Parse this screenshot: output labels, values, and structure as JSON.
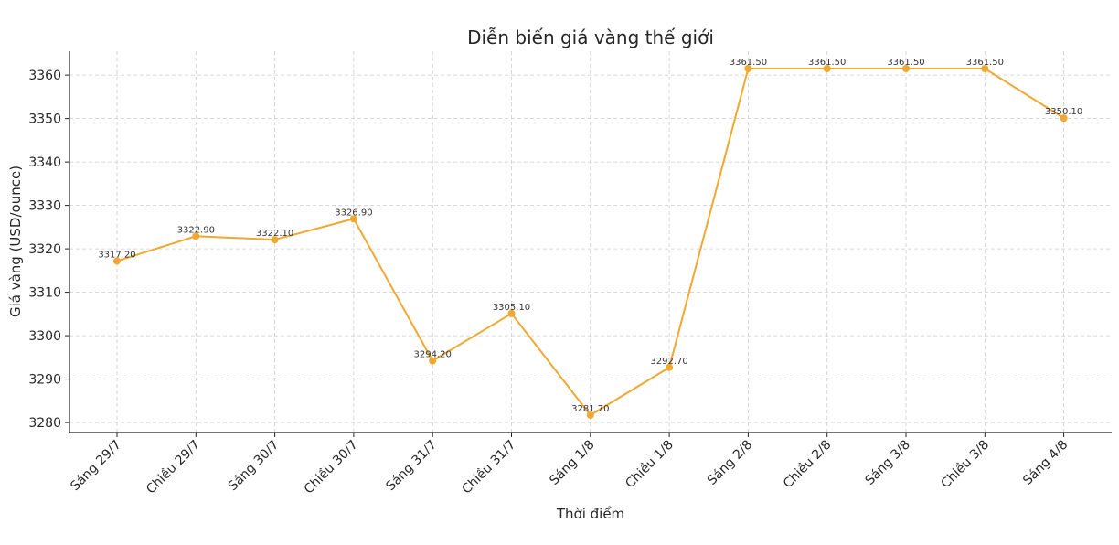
{
  "chart_data": {
    "type": "line",
    "title": "Diễn biến giá vàng thế giới",
    "xlabel": "Thời điểm",
    "ylabel": "Giá vàng (USD/ounce)",
    "categories": [
      "Sáng 29/7",
      "Chiều 29/7",
      "Sáng 30/7",
      "Chiều 30/7",
      "Sáng 31/7",
      "Chiều 31/7",
      "Sáng 1/8",
      "Chiều 1/8",
      "Sáng 2/8",
      "Chiều 2/8",
      "Sáng 3/8",
      "Chiều 3/8",
      "Sáng 4/8"
    ],
    "values": [
      3317.2,
      3322.9,
      3322.1,
      3326.9,
      3294.2,
      3305.1,
      3281.7,
      3292.7,
      3361.5,
      3361.5,
      3361.5,
      3361.5,
      3350.1
    ],
    "value_labels": [
      "3317.20",
      "3322.90",
      "3322.10",
      "3326.90",
      "3294.20",
      "3305.10",
      "3281.70",
      "3292.70",
      "3361.50",
      "3361.50",
      "3361.50",
      "3361.50",
      "3350.10"
    ],
    "yticks": [
      3280,
      3290,
      3300,
      3310,
      3320,
      3330,
      3340,
      3350,
      3360
    ],
    "ylim": [
      3277.7,
      3365.5
    ],
    "grid": true,
    "legend": "none",
    "line_color": "#f0a830"
  }
}
